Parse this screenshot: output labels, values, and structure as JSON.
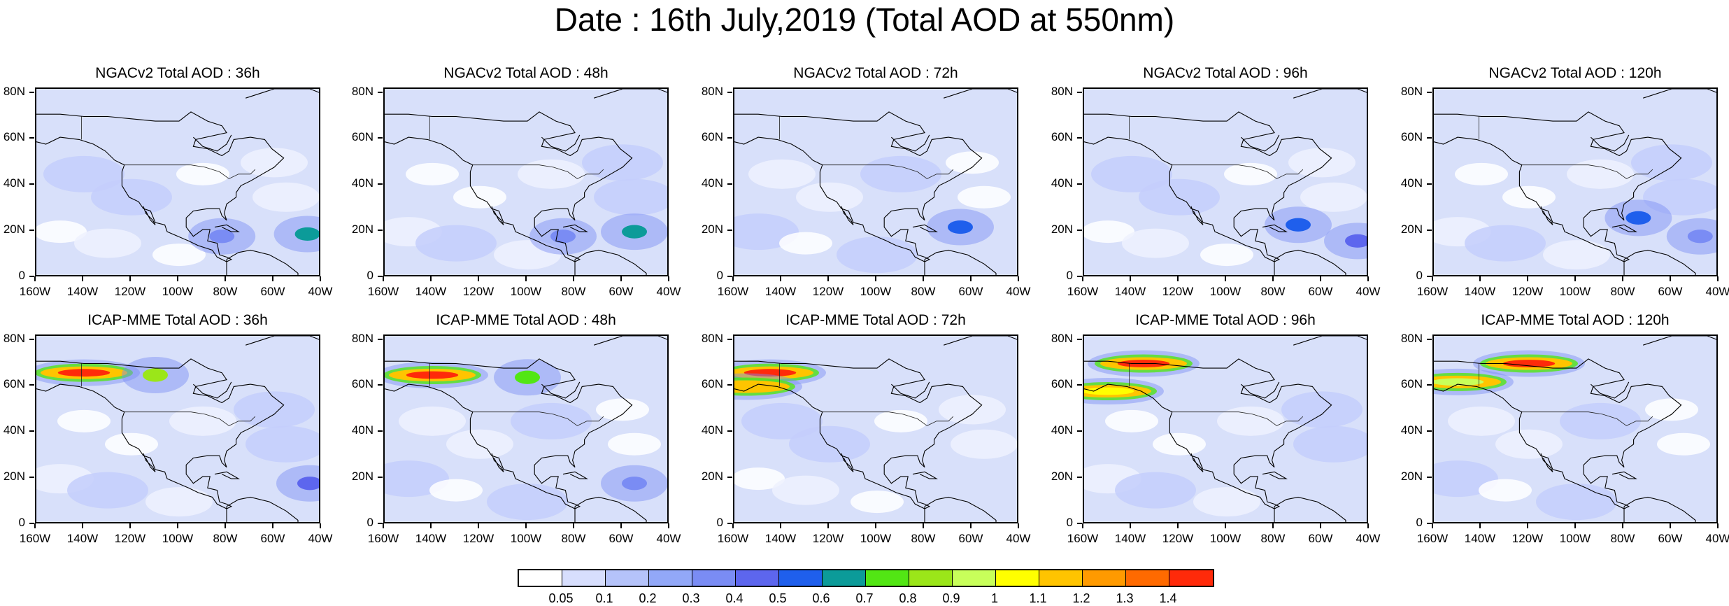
{
  "title": "Date : 16th July,2019 (Total AOD at 550nm)",
  "rows": [
    {
      "model": "NGACv2",
      "panels": [
        {
          "title": "NGACv2 Total AOD : 36h",
          "lead": "36h"
        },
        {
          "title": "NGACv2 Total AOD : 48h",
          "lead": "48h"
        },
        {
          "title": "NGACv2 Total AOD : 72h",
          "lead": "72h"
        },
        {
          "title": "NGACv2 Total AOD : 96h",
          "lead": "96h"
        },
        {
          "title": "NGACv2 Total AOD : 120h",
          "lead": "120h"
        }
      ]
    },
    {
      "model": "ICAP-MME",
      "panels": [
        {
          "title": "ICAP-MME Total AOD : 36h",
          "lead": "36h"
        },
        {
          "title": "ICAP-MME Total AOD : 48h",
          "lead": "48h"
        },
        {
          "title": "ICAP-MME Total AOD : 72h",
          "lead": "72h"
        },
        {
          "title": "ICAP-MME Total AOD : 96h",
          "lead": "96h"
        },
        {
          "title": "ICAP-MME Total AOD : 120h",
          "lead": "120h"
        }
      ]
    }
  ],
  "lat_labels": [
    "80N",
    "60N",
    "40N",
    "20N",
    "0"
  ],
  "lon_labels": [
    "160W",
    "140W",
    "120W",
    "100W",
    "80W",
    "60W",
    "40W"
  ],
  "colorbar": {
    "labels": [
      "0.05",
      "0.1",
      "0.2",
      "0.3",
      "0.4",
      "0.5",
      "0.6",
      "0.7",
      "0.8",
      "0.9",
      "1",
      "1.1",
      "1.2",
      "1.3",
      "1.4"
    ],
    "colors": [
      "#ffffff",
      "#d7defd",
      "#b5c3fa",
      "#92a8f8",
      "#7a8cf4",
      "#5d66ee",
      "#1f5fec",
      "#0c9b99",
      "#52e614",
      "#9be619",
      "#c8ff5a",
      "#ffff00",
      "#ffc400",
      "#ff9a00",
      "#ff6a00",
      "#ff2a0a"
    ]
  },
  "plumes": {
    "NGACv2": {
      "36h": [
        {
          "lon": -46,
          "lat": 19,
          "aod": 0.6,
          "color": "#0c9b99"
        },
        {
          "lon": -82,
          "lat": 18,
          "aod": 0.4,
          "color": "#7a8cf4"
        }
      ],
      "48h": [
        {
          "lon": -55,
          "lat": 20,
          "aod": 0.6,
          "color": "#0c9b99"
        },
        {
          "lon": -85,
          "lat": 18,
          "aod": 0.4,
          "color": "#7a8cf4"
        }
      ],
      "72h": [
        {
          "lon": -65,
          "lat": 22,
          "aod": 0.5,
          "color": "#1f5fec"
        }
      ],
      "96h": [
        {
          "lon": -70,
          "lat": 23,
          "aod": 0.5,
          "color": "#1f5fec"
        },
        {
          "lon": -45,
          "lat": 16,
          "aod": 0.4,
          "color": "#5d66ee"
        }
      ],
      "120h": [
        {
          "lon": -74,
          "lat": 26,
          "aod": 0.5,
          "color": "#1f5fec"
        },
        {
          "lon": -48,
          "lat": 18,
          "aod": 0.4,
          "color": "#7a8cf4"
        }
      ]
    },
    "ICAP-MME": {
      "36h": [
        {
          "lon": -140,
          "lat": 66,
          "aod": 1.4,
          "color": "#ff2a0a"
        },
        {
          "lon": -110,
          "lat": 65,
          "aod": 0.9,
          "color": "#9be619"
        },
        {
          "lon": -45,
          "lat": 18,
          "aod": 0.5,
          "color": "#5d66ee"
        }
      ],
      "48h": [
        {
          "lon": -140,
          "lat": 65,
          "aod": 1.4,
          "color": "#ff2a0a"
        },
        {
          "lon": -100,
          "lat": 64,
          "aod": 0.8,
          "color": "#52e614"
        },
        {
          "lon": -55,
          "lat": 18,
          "aod": 0.4,
          "color": "#7a8cf4"
        }
      ],
      "72h": [
        {
          "lon": -145,
          "lat": 66,
          "aod": 1.4,
          "color": "#ff2a0a"
        },
        {
          "lon": -155,
          "lat": 60,
          "aod": 1.2,
          "color": "#ffc400"
        }
      ],
      "96h": [
        {
          "lon": -135,
          "lat": 70,
          "aod": 1.4,
          "color": "#ff2a0a"
        },
        {
          "lon": -150,
          "lat": 58,
          "aod": 1.1,
          "color": "#ffff00"
        }
      ],
      "120h": [
        {
          "lon": -120,
          "lat": 70,
          "aod": 1.4,
          "color": "#ff2a0a"
        },
        {
          "lon": -150,
          "lat": 62,
          "aod": 1.0,
          "color": "#c8ff5a"
        }
      ]
    }
  }
}
